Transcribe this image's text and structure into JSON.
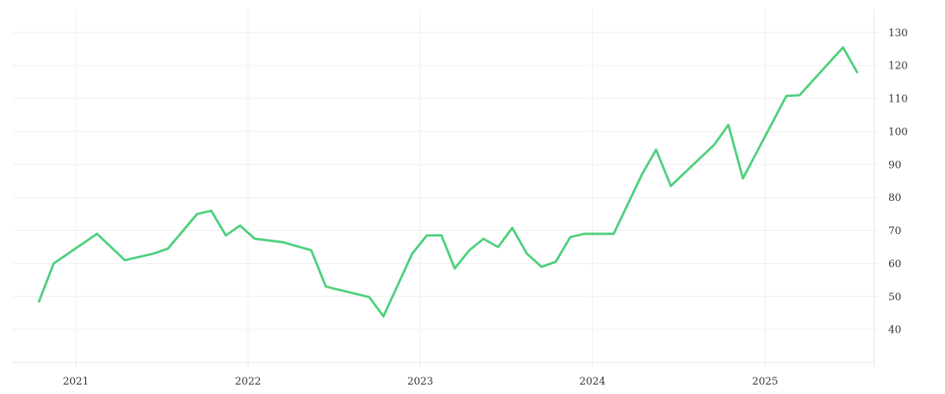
{
  "chart_data": {
    "type": "line",
    "title": "",
    "xlabel": "",
    "ylabel": "",
    "grid": true,
    "y_axis_side": "right",
    "x_tick_labels": [
      "2021",
      "2022",
      "2023",
      "2024",
      "2025"
    ],
    "y_tick_labels": [
      "40",
      "50",
      "60",
      "70",
      "80",
      "90",
      "100",
      "110",
      "120",
      "130"
    ],
    "xlim": [
      "2020-08-20",
      "2025-08-20"
    ],
    "ylim": [
      30,
      137
    ],
    "series": [
      {
        "color": "#4fd07d",
        "points": [
          [
            "2020-10-15",
            48.5
          ],
          [
            "2020-11-15",
            60
          ],
          [
            "2021-02-15",
            69
          ],
          [
            "2021-04-15",
            61
          ],
          [
            "2021-06-15",
            63
          ],
          [
            "2021-07-15",
            64.5
          ],
          [
            "2021-09-15",
            75
          ],
          [
            "2021-10-15",
            76
          ],
          [
            "2021-11-15",
            68.5
          ],
          [
            "2021-12-15",
            71.5
          ],
          [
            "2022-01-15",
            67.5
          ],
          [
            "2022-03-15",
            66.5
          ],
          [
            "2022-05-15",
            64
          ],
          [
            "2022-06-15",
            53
          ],
          [
            "2022-09-15",
            49.8
          ],
          [
            "2022-10-15",
            44
          ],
          [
            "2022-12-15",
            63
          ],
          [
            "2023-01-15",
            68.5
          ],
          [
            "2023-02-15",
            68.5
          ],
          [
            "2023-03-15",
            58.5
          ],
          [
            "2023-04-15",
            64
          ],
          [
            "2023-05-15",
            67.5
          ],
          [
            "2023-06-15",
            65
          ],
          [
            "2023-07-15",
            70.8
          ],
          [
            "2023-08-15",
            63
          ],
          [
            "2023-09-15",
            59
          ],
          [
            "2023-10-15",
            60.5
          ],
          [
            "2023-11-15",
            68
          ],
          [
            "2023-12-15",
            69
          ],
          [
            "2024-02-15",
            69
          ],
          [
            "2024-04-15",
            87
          ],
          [
            "2024-05-15",
            94.5
          ],
          [
            "2024-06-15",
            83.5
          ],
          [
            "2024-09-15",
            96
          ],
          [
            "2024-10-15",
            102
          ],
          [
            "2024-11-15",
            85.8
          ],
          [
            "2025-02-15",
            110.8
          ],
          [
            "2025-03-15",
            111
          ],
          [
            "2025-06-15",
            125.5
          ],
          [
            "2025-07-15",
            118
          ]
        ]
      }
    ]
  }
}
